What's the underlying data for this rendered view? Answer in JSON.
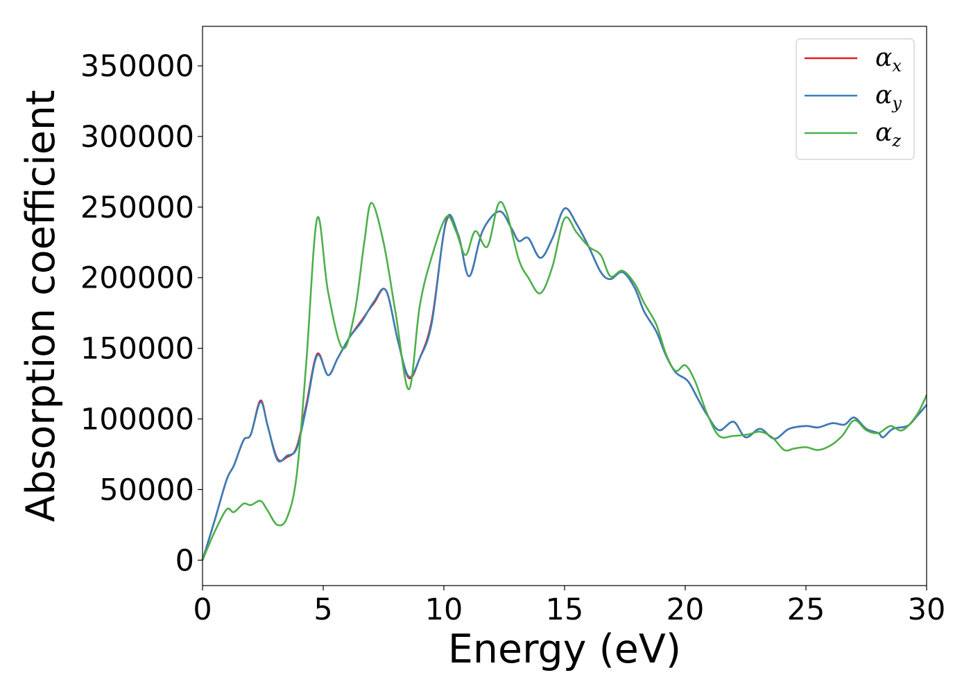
{
  "chart_data": {
    "type": "line",
    "title": "",
    "xlabel": "Energy (eV)",
    "ylabel": "Absorption coefficient",
    "xlim": [
      0,
      30
    ],
    "ylim": [
      -18000,
      378000
    ],
    "xticks": [
      0,
      5,
      10,
      15,
      20,
      25,
      30
    ],
    "xtick_labels": [
      "0",
      "5",
      "10",
      "15",
      "20",
      "25",
      "30"
    ],
    "yticks": [
      0,
      50000,
      100000,
      150000,
      200000,
      250000,
      300000,
      350000
    ],
    "ytick_labels": [
      "0",
      "50000",
      "100000",
      "150000",
      "200000",
      "250000",
      "300000",
      "350000"
    ],
    "grid": false,
    "legend_position": "top-right",
    "series": [
      {
        "name": "α_x",
        "legend_main": "α",
        "legend_sub": "x",
        "color": "#e41a1c",
        "points": [
          [
            0,
            0
          ],
          [
            0.5,
            28000
          ],
          [
            1,
            57000
          ],
          [
            1.3,
            67000
          ],
          [
            1.7,
            85000
          ],
          [
            2,
            89000
          ],
          [
            2.4,
            113000
          ],
          [
            2.7,
            95000
          ],
          [
            3.1,
            72000
          ],
          [
            3.5,
            73000
          ],
          [
            3.9,
            80000
          ],
          [
            4.3,
            110000
          ],
          [
            4.75,
            146000
          ],
          [
            5.2,
            131000
          ],
          [
            5.6,
            143000
          ],
          [
            6.1,
            158000
          ],
          [
            6.6,
            170000
          ],
          [
            7.1,
            182000
          ],
          [
            7.6,
            191000
          ],
          [
            8.1,
            155000
          ],
          [
            8.55,
            129000
          ],
          [
            9,
            143000
          ],
          [
            9.5,
            170000
          ],
          [
            10.1,
            240000
          ],
          [
            10.6,
            230000
          ],
          [
            11.05,
            201000
          ],
          [
            11.6,
            233000
          ],
          [
            12.3,
            247000
          ],
          [
            12.8,
            235000
          ],
          [
            13.1,
            226000
          ],
          [
            13.5,
            228000
          ],
          [
            14,
            214000
          ],
          [
            14.5,
            228000
          ],
          [
            15,
            249000
          ],
          [
            15.5,
            238000
          ],
          [
            16,
            222000
          ],
          [
            16.5,
            204000
          ],
          [
            16.9,
            199000
          ],
          [
            17.4,
            204000
          ],
          [
            17.9,
            193000
          ],
          [
            18.3,
            176000
          ],
          [
            18.8,
            162000
          ],
          [
            19.2,
            145000
          ],
          [
            19.6,
            133000
          ],
          [
            20.1,
            127000
          ],
          [
            20.5,
            115000
          ],
          [
            20.9,
            103000
          ],
          [
            21.4,
            92000
          ],
          [
            22,
            98000
          ],
          [
            22.5,
            87000
          ],
          [
            23.1,
            93000
          ],
          [
            23.7,
            86000
          ],
          [
            24.3,
            93000
          ],
          [
            25,
            95000
          ],
          [
            25.5,
            94000
          ],
          [
            26.1,
            97000
          ],
          [
            26.6,
            96000
          ],
          [
            27,
            101000
          ],
          [
            27.5,
            93000
          ],
          [
            28,
            90000
          ],
          [
            28.2,
            87000
          ],
          [
            28.6,
            93000
          ],
          [
            29.2,
            95000
          ],
          [
            29.6,
            102000
          ],
          [
            30,
            110000
          ]
        ]
      },
      {
        "name": "α_y",
        "legend_main": "α",
        "legend_sub": "y",
        "color": "#377eb8",
        "points": [
          [
            0,
            0
          ],
          [
            0.5,
            28000
          ],
          [
            1,
            57000
          ],
          [
            1.3,
            67000
          ],
          [
            1.7,
            85000
          ],
          [
            2,
            89000
          ],
          [
            2.4,
            112000
          ],
          [
            2.7,
            95000
          ],
          [
            3.1,
            71000
          ],
          [
            3.5,
            74000
          ],
          [
            3.9,
            79000
          ],
          [
            4.3,
            108000
          ],
          [
            4.75,
            145000
          ],
          [
            5.2,
            131000
          ],
          [
            5.6,
            143000
          ],
          [
            6.1,
            158000
          ],
          [
            6.6,
            169000
          ],
          [
            7.1,
            183000
          ],
          [
            7.6,
            191000
          ],
          [
            8.1,
            155000
          ],
          [
            8.55,
            130000
          ],
          [
            9,
            143000
          ],
          [
            9.5,
            168000
          ],
          [
            10.1,
            241000
          ],
          [
            10.6,
            230000
          ],
          [
            11.05,
            201000
          ],
          [
            11.6,
            233000
          ],
          [
            12.3,
            247000
          ],
          [
            12.8,
            235000
          ],
          [
            13.1,
            226000
          ],
          [
            13.5,
            228000
          ],
          [
            14,
            214000
          ],
          [
            14.5,
            228000
          ],
          [
            15,
            249000
          ],
          [
            15.5,
            238000
          ],
          [
            16,
            222000
          ],
          [
            16.5,
            204000
          ],
          [
            16.9,
            199000
          ],
          [
            17.4,
            204000
          ],
          [
            17.9,
            193000
          ],
          [
            18.3,
            176000
          ],
          [
            18.8,
            162000
          ],
          [
            19.2,
            145000
          ],
          [
            19.6,
            133000
          ],
          [
            20.1,
            127000
          ],
          [
            20.5,
            115000
          ],
          [
            20.9,
            103000
          ],
          [
            21.4,
            92000
          ],
          [
            22,
            98000
          ],
          [
            22.5,
            87000
          ],
          [
            23.1,
            93000
          ],
          [
            23.7,
            86000
          ],
          [
            24.3,
            93000
          ],
          [
            25,
            95000
          ],
          [
            25.5,
            94000
          ],
          [
            26.1,
            97000
          ],
          [
            26.6,
            96000
          ],
          [
            27,
            101000
          ],
          [
            27.5,
            93000
          ],
          [
            28,
            90000
          ],
          [
            28.2,
            87000
          ],
          [
            28.6,
            93000
          ],
          [
            29.2,
            95000
          ],
          [
            29.6,
            102000
          ],
          [
            30,
            110000
          ]
        ]
      },
      {
        "name": "α_z",
        "legend_main": "α",
        "legend_sub": "z",
        "color": "#4daf4a",
        "points": [
          [
            0,
            0
          ],
          [
            0.5,
            20000
          ],
          [
            1,
            36000
          ],
          [
            1.3,
            34000
          ],
          [
            1.7,
            40000
          ],
          [
            2,
            39000
          ],
          [
            2.4,
            42000
          ],
          [
            2.7,
            35000
          ],
          [
            3.1,
            25000
          ],
          [
            3.5,
            30000
          ],
          [
            3.9,
            60000
          ],
          [
            4.3,
            140000
          ],
          [
            4.75,
            242000
          ],
          [
            5.2,
            190000
          ],
          [
            5.8,
            150000
          ],
          [
            6.3,
            175000
          ],
          [
            6.7,
            225000
          ],
          [
            7,
            253000
          ],
          [
            7.5,
            225000
          ],
          [
            8,
            175000
          ],
          [
            8.55,
            121000
          ],
          [
            9,
            180000
          ],
          [
            9.5,
            215000
          ],
          [
            10.1,
            243000
          ],
          [
            10.5,
            233000
          ],
          [
            10.9,
            216000
          ],
          [
            11.3,
            233000
          ],
          [
            11.8,
            222000
          ],
          [
            12.25,
            252000
          ],
          [
            12.6,
            246000
          ],
          [
            13.1,
            213000
          ],
          [
            13.5,
            200000
          ],
          [
            14,
            189000
          ],
          [
            14.5,
            208000
          ],
          [
            15,
            242000
          ],
          [
            15.5,
            232000
          ],
          [
            16,
            222000
          ],
          [
            16.5,
            216000
          ],
          [
            16.9,
            201000
          ],
          [
            17.4,
            205000
          ],
          [
            17.9,
            196000
          ],
          [
            18.3,
            182000
          ],
          [
            18.8,
            167000
          ],
          [
            19.2,
            146000
          ],
          [
            19.6,
            134000
          ],
          [
            20,
            138000
          ],
          [
            20.4,
            127000
          ],
          [
            20.9,
            104000
          ],
          [
            21.4,
            88000
          ],
          [
            22,
            88000
          ],
          [
            22.6,
            89000
          ],
          [
            23.1,
            91000
          ],
          [
            23.6,
            87000
          ],
          [
            24.1,
            78000
          ],
          [
            24.5,
            79000
          ],
          [
            25,
            80000
          ],
          [
            25.5,
            78000
          ],
          [
            26,
            81000
          ],
          [
            26.5,
            88000
          ],
          [
            27,
            99000
          ],
          [
            27.5,
            92000
          ],
          [
            28,
            90000
          ],
          [
            28.5,
            95000
          ],
          [
            29,
            92000
          ],
          [
            29.6,
            103000
          ],
          [
            30,
            117000
          ]
        ]
      }
    ]
  }
}
